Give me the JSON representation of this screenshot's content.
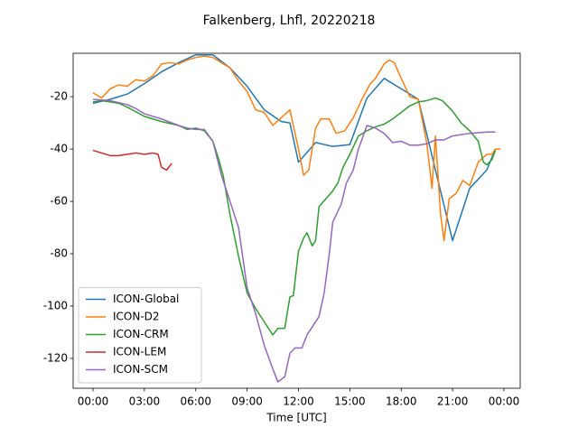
{
  "chart_data": {
    "type": "line",
    "title": "Falkenberg, Lhfl, 20220218",
    "xlabel": "Time [UTC]",
    "xlim": [
      -1.16,
      24.95
    ],
    "ylim": [
      -131.4,
      -3.4
    ],
    "xticks": [
      {
        "value": 0,
        "label": "00:00"
      },
      {
        "value": 3,
        "label": "03:00"
      },
      {
        "value": 6,
        "label": "06:00"
      },
      {
        "value": 9,
        "label": "09:00"
      },
      {
        "value": 12,
        "label": "12:00"
      },
      {
        "value": 15,
        "label": "15:00"
      },
      {
        "value": 18,
        "label": "18:00"
      },
      {
        "value": 21,
        "label": "21:00"
      },
      {
        "value": 24,
        "label": "00:00"
      }
    ],
    "yticks": [
      -120,
      -100,
      -80,
      -60,
      -40,
      -20
    ],
    "legend": "lower left",
    "series": [
      {
        "name": "ICON-Global",
        "color": "#1f77b4",
        "x": [
          0,
          1,
          2,
          3,
          4,
          5,
          6,
          7,
          8,
          9,
          10,
          11,
          11.5,
          12,
          13,
          14,
          15,
          16,
          17,
          18,
          19,
          21,
          22,
          23,
          23.5
        ],
        "values": [
          -22.5,
          -21,
          -19,
          -15,
          -10.5,
          -7,
          -4,
          -4,
          -9,
          -16,
          -25,
          -29.5,
          -30,
          -45,
          -37.5,
          -39,
          -38.3,
          -20.5,
          -13,
          -17,
          -21,
          -75,
          -55,
          -48,
          -40
        ]
      },
      {
        "name": "ICON-D2",
        "color": "#ff7f0e",
        "x": [
          0,
          0.5,
          1,
          1.5,
          2,
          2.5,
          3,
          3.5,
          4,
          4.5,
          5,
          5.5,
          6,
          6.5,
          7,
          7.5,
          8,
          8.5,
          9,
          9.5,
          10,
          10.5,
          11,
          11.5,
          12,
          12.3,
          12.6,
          13,
          13.3,
          13.8,
          14.2,
          14.7,
          15.2,
          15.7,
          16.2,
          16.5,
          17,
          17.3,
          17.6,
          18,
          18.5,
          19,
          19.5,
          19.8,
          20,
          20.3,
          20.5,
          20.8,
          21.2,
          21.6,
          22,
          22.5,
          23,
          23.3,
          23.5,
          23.8
        ],
        "values": [
          -18.5,
          -20.5,
          -17,
          -15.5,
          -16,
          -13.5,
          -14,
          -12,
          -7.5,
          -7,
          -7.5,
          -6,
          -5,
          -4.5,
          -5,
          -7,
          -9,
          -14,
          -18,
          -25,
          -26,
          -31,
          -28,
          -25,
          -40,
          -50,
          -48,
          -32,
          -28.5,
          -28.5,
          -34,
          -33,
          -28,
          -21,
          -15,
          -13,
          -7.5,
          -6,
          -7,
          -13,
          -20,
          -21,
          -38,
          -55,
          -35,
          -65,
          -75,
          -59,
          -57,
          -52,
          -54,
          -45,
          -42,
          -42,
          -40,
          -40
        ]
      },
      {
        "name": "ICON-CRM",
        "color": "#2ca02c",
        "x": [
          0,
          0.5,
          1,
          1.5,
          2,
          3,
          4,
          5,
          5.5,
          6,
          6.5,
          7,
          7.3,
          7.6,
          8,
          8.5,
          9,
          9.5,
          10,
          10.5,
          10.8,
          11.2,
          11.5,
          11.7,
          12,
          12.3,
          12.5,
          12.8,
          13,
          13.2,
          13.6,
          14,
          14.3,
          14.6,
          15,
          15.5,
          16,
          16.5,
          17,
          17.5,
          18,
          18.5,
          19,
          19.5,
          20,
          20.4,
          21,
          21.5,
          22,
          22.5,
          22.8,
          23,
          23.3,
          23.5
        ],
        "values": [
          -22,
          -21.5,
          -22,
          -22.5,
          -24,
          -27.5,
          -29.5,
          -31,
          -32.5,
          -32,
          -33,
          -37,
          -43,
          -50,
          -65,
          -81,
          -95,
          -101,
          -106,
          -111,
          -108.5,
          -108.5,
          -96.5,
          -96,
          -79,
          -74,
          -72,
          -77,
          -75,
          -62,
          -59,
          -56,
          -53,
          -47,
          -42,
          -35,
          -33,
          -31.5,
          -30.5,
          -28.5,
          -26,
          -23.5,
          -22,
          -21.5,
          -20.5,
          -21.5,
          -25.5,
          -30,
          -33,
          -37,
          -45,
          -46,
          -44,
          -40.5
        ]
      },
      {
        "name": "ICON-LEM",
        "color": "#d62728",
        "x": [
          0,
          0.5,
          1,
          1.5,
          2,
          2.5,
          3,
          3.5,
          3.8,
          4,
          4.3,
          4.6
        ],
        "values": [
          -40.5,
          -41.5,
          -42.5,
          -42.5,
          -42,
          -41.5,
          -42,
          -41.5,
          -42,
          -47,
          -48,
          -45.5
        ]
      },
      {
        "name": "ICON-SCM",
        "color": "#9467bd",
        "x": [
          0,
          1,
          2,
          2.5,
          3,
          4,
          5,
          5.5,
          6,
          6.5,
          7,
          7.5,
          8,
          8.5,
          9,
          9.5,
          10,
          10.5,
          10.8,
          11.2,
          11.5,
          11.8,
          12.2,
          12.5,
          12.8,
          13.2,
          13.5,
          13.8,
          14,
          14.5,
          14.8,
          15.2,
          15.5,
          16,
          16.5,
          17,
          17.5,
          18,
          18.5,
          19,
          19.5,
          20,
          20.5,
          21,
          22,
          23,
          23.5
        ],
        "values": [
          -21,
          -21.5,
          -23,
          -24.5,
          -26.5,
          -28.5,
          -31,
          -32,
          -32.5,
          -32.5,
          -37,
          -50,
          -60,
          -70,
          -93,
          -103,
          -115,
          -124,
          -129,
          -127,
          -118,
          -116,
          -116,
          -111,
          -108,
          -104,
          -95,
          -80,
          -68,
          -61,
          -53,
          -48,
          -40,
          -31,
          -32,
          -34,
          -37.5,
          -37,
          -38.5,
          -38.5,
          -38,
          -36.5,
          -36.5,
          -35,
          -34,
          -33.5,
          -33.5
        ]
      }
    ]
  }
}
